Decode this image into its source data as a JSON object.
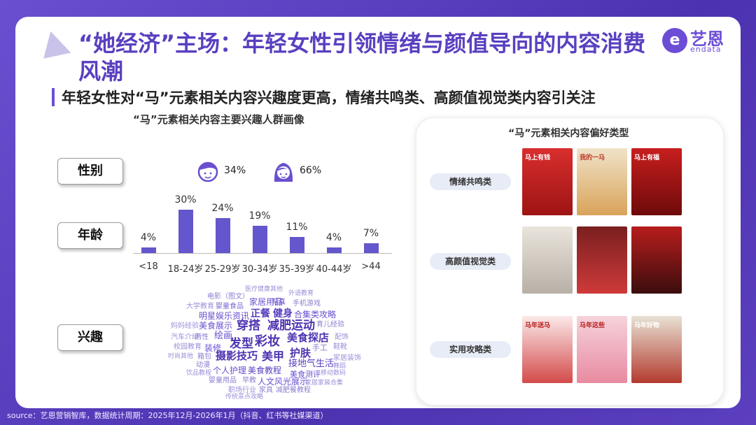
{
  "title": "“她经济”主场：年轻女性引领情绪与颜值导向的内容消费风潮",
  "brand": {
    "cn": "艺恩",
    "en": "endata",
    "mark": "e"
  },
  "subtitle": "年轻女性对“马”元素相关内容兴趣度更高，情绪共鸣类、高颜值视觉类内容引关注",
  "left": {
    "heading": "“马”元素相关内容主要兴趣人群画像",
    "labels": {
      "gender": "性别",
      "age": "年龄",
      "interest": "兴趣"
    },
    "gender": {
      "male": "34%",
      "female": "66%",
      "male_icon": "male-avatar-icon",
      "female_icon": "female-avatar-icon"
    }
  },
  "chart_data": {
    "type": "bar",
    "title": "",
    "categories": [
      "<18",
      "18-24岁",
      "25-29岁",
      "30-34岁",
      "35-39岁",
      "40-44岁",
      ">44"
    ],
    "values": [
      4,
      30,
      24,
      19,
      11,
      4,
      7
    ],
    "value_labels": [
      "4%",
      "30%",
      "24%",
      "19%",
      "11%",
      "4%",
      "7%"
    ],
    "color": "#6456cc",
    "ylim": [
      0,
      30
    ]
  },
  "interest_words": [
    "医疗健康其他",
    "外语教育",
    "电影（图文）",
    "家居用品",
    "写真",
    "手机游戏",
    "大学教育",
    "婴童食品",
    "明星娱乐资讯",
    "正餐",
    "健身",
    "合集类攻略",
    "妈妈经验",
    "美食展示",
    "穿搭",
    "减肥运动",
    "育儿经验",
    "汽车介绍",
    "两性",
    "绘画",
    "美食探店",
    "配饰",
    "校园教育",
    "装修",
    "发型",
    "彩妆",
    "手工",
    "鞋靴",
    "时尚其他",
    "箱包",
    "护肤",
    "家居装饰",
    "摄影技巧",
    "美甲",
    "接地气生活",
    "舞蹈",
    "动漫",
    "饮品教程",
    "个人护理",
    "美食教程",
    "美食测评",
    "移动数码",
    "婴童用品",
    "早教",
    "人文风光展示",
    "家居家装合集",
    "职场行业",
    "家具",
    "减肥餐教程",
    "传统景点攻略"
  ],
  "right": {
    "heading": "“马”元素相关内容偏好类型",
    "categories": [
      "情绪共鸣类",
      "高颜值视觉类",
      "实用攻略类"
    ],
    "thumb_texts": [
      "马上有钱",
      "我的一马",
      "马上有福",
      "马年送马",
      "马年这些",
      "马年好物"
    ]
  },
  "colors": {
    "accent": "#6c4dd6",
    "background": "#5b3fbf",
    "bar": "#6456cc"
  },
  "source": "source：艺恩营销智库，数据统计周期：2025年12月-2026年1月（抖音、红书等社媒渠道）"
}
